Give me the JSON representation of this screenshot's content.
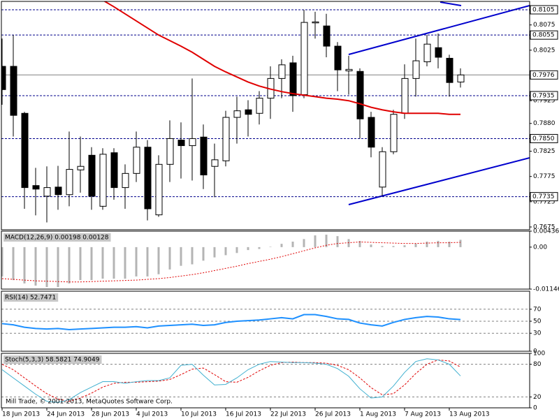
{
  "chart_data": [
    {
      "type": "candlestick",
      "categories": [
        "18 Jun 2013",
        null,
        null,
        null,
        "24 Jun 2013",
        null,
        null,
        null,
        "28 Jun 2013",
        null,
        null,
        null,
        "4 Jul 2013",
        null,
        null,
        null,
        "10 Jul 2013",
        null,
        null,
        null,
        "16 Jul 2013",
        null,
        null,
        null,
        "22 Jul 2013",
        null,
        null,
        null,
        "26 Jul 2013",
        null,
        null,
        null,
        "1 Aug 2013",
        null,
        null,
        null,
        "7 Aug 2013",
        null,
        null,
        null,
        "13 Aug 2013",
        null
      ],
      "open": [
        0.7993,
        0.7993,
        0.79,
        0.7757,
        0.7736,
        0.7754,
        0.7739,
        0.7788,
        0.7817,
        0.7716,
        0.7822,
        0.7753,
        0.7781,
        0.7833,
        0.7699,
        0.7799,
        0.7847,
        0.7836,
        0.7853,
        0.7795,
        0.7806,
        0.7892,
        0.7907,
        0.79,
        0.793,
        0.7969,
        0.8,
        0.7937,
        0.8079,
        0.8073,
        0.8033,
        0.7984,
        0.7983,
        0.7892,
        0.7754,
        0.7824,
        0.79,
        0.7969,
        0.8002,
        0.803,
        0.8009,
        0.7962
      ],
      "high": [
        0.8048,
        0.8055,
        0.7903,
        0.7792,
        0.7795,
        0.7796,
        0.7864,
        0.7854,
        0.7833,
        0.7831,
        0.7831,
        0.7799,
        0.7864,
        0.7847,
        0.7817,
        0.7886,
        0.7882,
        0.7969,
        0.7878,
        0.784,
        0.7905,
        0.7933,
        0.7926,
        0.7944,
        0.7993,
        0.8007,
        0.8014,
        0.8105,
        0.8101,
        0.8097,
        0.8041,
        0.8014,
        0.7989,
        0.7903,
        0.7833,
        0.7907,
        0.7997,
        0.8048,
        0.8055,
        0.8058,
        0.8016,
        0.7989
      ],
      "low": [
        0.7917,
        0.7854,
        0.7711,
        0.7698,
        0.7684,
        0.7709,
        0.7716,
        0.7743,
        0.7709,
        0.7709,
        0.7729,
        0.7711,
        0.7764,
        0.7688,
        0.7695,
        0.7764,
        0.7771,
        0.7767,
        0.775,
        0.7734,
        0.7795,
        0.784,
        0.7854,
        0.7878,
        0.7889,
        0.793,
        0.7903,
        0.793,
        0.8048,
        0.8011,
        0.7944,
        0.7937,
        0.785,
        0.7813,
        0.7736,
        0.7819,
        0.7889,
        0.7933,
        0.7993,
        0.7989,
        0.7933,
        0.7951
      ],
      "close": [
        0.7947,
        0.7896,
        0.7753,
        0.775,
        0.7753,
        0.7739,
        0.7789,
        0.7795,
        0.7736,
        0.7819,
        0.7753,
        0.7781,
        0.7833,
        0.7711,
        0.7799,
        0.785,
        0.7836,
        0.785,
        0.7778,
        0.7808,
        0.7892,
        0.7905,
        0.7898,
        0.793,
        0.7969,
        0.7996,
        0.7935,
        0.808,
        0.8081,
        0.8033,
        0.7986,
        0.7987,
        0.7889,
        0.7833,
        0.7824,
        0.7898,
        0.7969,
        0.8004,
        0.8037,
        0.8011,
        0.7961,
        0.7976
      ],
      "up_color": "#ffffff",
      "down_color": "#000000",
      "overlay_line": {
        "color": "#e00000",
        "values": [
          null,
          null,
          null,
          null,
          null,
          null,
          null,
          null,
          null,
          0.8124,
          0.8111,
          0.8097,
          0.8083,
          0.8069,
          0.8055,
          0.8044,
          0.8033,
          0.8021,
          0.8007,
          0.7993,
          0.7982,
          0.7972,
          0.7962,
          0.7954,
          0.7948,
          0.7943,
          0.7939,
          0.7936,
          0.7933,
          0.793,
          0.7928,
          0.7925,
          0.7919,
          0.7912,
          0.7907,
          0.7903,
          0.79,
          0.79,
          0.79,
          0.79,
          0.7898,
          0.7898
        ]
      },
      "levels": [
        0.8105,
        0.8055,
        0.7935,
        {
          "value": 0.785,
          "label": "0.7850"
        },
        0.7735
      ],
      "level_color": "#00008b",
      "current_price": 0.7976,
      "ylim": [
        0.76695,
        0.81216
      ],
      "yticks": [
        0.8075,
        0.8025,
        0.7925,
        {
          "value": 0.788,
          "label": "0.7880"
        },
        0.7825,
        0.7775,
        0.7725,
        0.7675
      ],
      "grid": false
    },
    {
      "type": "bar",
      "title": "MACD(12,26,9) 0.00198 0.00128",
      "color": "#b4b4b4",
      "values": [
        -0.008,
        -0.009,
        -0.0099,
        -0.0105,
        -0.0109,
        -0.0109,
        -0.0099,
        -0.009,
        -0.009,
        -0.0086,
        -0.0086,
        -0.0086,
        -0.008,
        -0.008,
        -0.0074,
        -0.0061,
        -0.0051,
        -0.0047,
        -0.0037,
        -0.0028,
        -0.0022,
        -0.0016,
        -0.0008,
        -0.0005,
        0.0001,
        0.0009,
        0.0015,
        0.0022,
        0.0032,
        0.0034,
        0.003,
        0.0022,
        0.0017,
        0.0007,
        0.0003,
        0.0003,
        0.0005,
        0.0009,
        0.0015,
        0.0017,
        0.0015,
        0.002
      ],
      "signal": {
        "color": "#e00000",
        "values": [
          -0.0086,
          -0.0088,
          -0.009,
          -0.0092,
          -0.0093,
          -0.0094,
          -0.0095,
          -0.0095,
          -0.0094,
          -0.0093,
          -0.0092,
          -0.0091,
          -0.009,
          -0.0088,
          -0.0086,
          -0.0083,
          -0.0079,
          -0.0075,
          -0.007,
          -0.0064,
          -0.0058,
          -0.0052,
          -0.0045,
          -0.0039,
          -0.0033,
          -0.0026,
          -0.0018,
          -0.001,
          -0.0002,
          0.0005,
          0.001,
          0.0012,
          0.0014,
          0.0013,
          0.0012,
          0.0011,
          0.001,
          0.001,
          0.0011,
          0.0012,
          0.0012,
          0.0013
        ]
      },
      "ylim": [
        -0.01146,
        0.00436
      ],
      "yticks": [
        0.00436,
        {
          "value": 0,
          "label": "0.00"
        },
        -0.01146
      ],
      "grid": false
    },
    {
      "type": "line",
      "title": "RSI(14) 52.7471",
      "color": "#1e90ff",
      "values": [
        46,
        44,
        40,
        38,
        37,
        38,
        36,
        37,
        38,
        39,
        40,
        40,
        41,
        39,
        42,
        43,
        44,
        45,
        43,
        44,
        48,
        50,
        51,
        52,
        54,
        56,
        54,
        61,
        61,
        58,
        54,
        53,
        47,
        44,
        42,
        48,
        53,
        56,
        58,
        57,
        54,
        52.7471
      ],
      "ylim": [
        0,
        100
      ],
      "yticks": [
        70,
        50,
        30,
        0
      ],
      "grid": true
    },
    {
      "type": "line",
      "title": "Stoch(5,3,3) 58.5821 74.9049",
      "color": "#40b0d0",
      "values": [
        70,
        55,
        40,
        25,
        12,
        10,
        15,
        28,
        38,
        48,
        48,
        45,
        48,
        50,
        50,
        55,
        78,
        80,
        60,
        42,
        43,
        55,
        70,
        80,
        85,
        84,
        83,
        83,
        82,
        80,
        72,
        58,
        35,
        18,
        20,
        40,
        65,
        85,
        90,
        88,
        80,
        58.5821
      ],
      "signal": {
        "color": "#e00000",
        "values": [
          80,
          70,
          55,
          40,
          26,
          16,
          12,
          18,
          27,
          38,
          45,
          47,
          47,
          48,
          49,
          52,
          61,
          71,
          73,
          61,
          48,
          47,
          56,
          68,
          78,
          83,
          84,
          83,
          83,
          82,
          78,
          70,
          55,
          37,
          24,
          26,
          42,
          63,
          80,
          88,
          86,
          74.9049
        ]
      },
      "ylim": [
        0,
        100
      ],
      "yticks": [
        100,
        80,
        20,
        0
      ],
      "grid": true,
      "annotation": "Mill Trade, © 2001-2013, MetaQuotes Software Corp."
    }
  ]
}
